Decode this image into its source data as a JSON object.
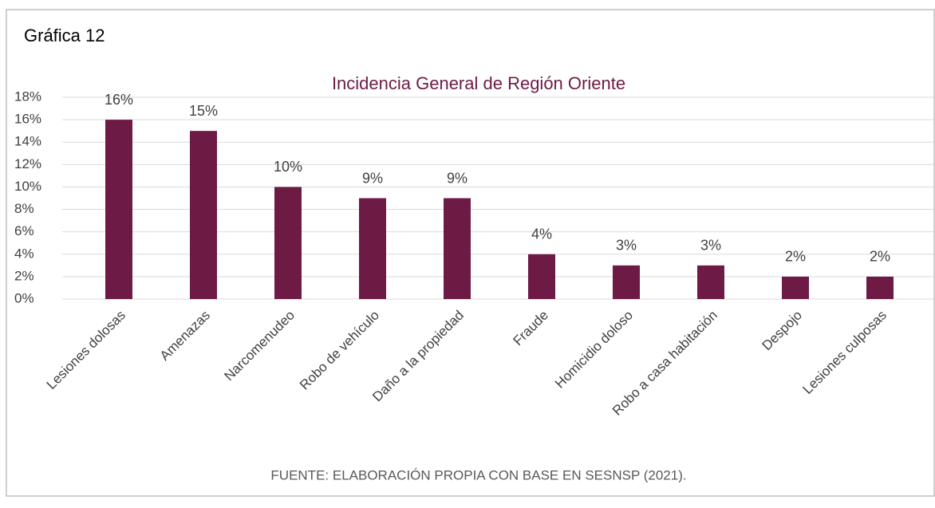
{
  "heading": "Gráfica 12",
  "chart_data": {
    "type": "bar",
    "title": "Incidencia General de Región Oriente",
    "categories": [
      "Lesiones dolosas",
      "Amenazas",
      "Narcomenudeo",
      "Robo de vehículo",
      "Daño a la propiedad",
      "Fraude",
      "Homicidio doloso",
      "Robo a casa habitación",
      "Despojo",
      "Lesiones culposas"
    ],
    "values": [
      16,
      15,
      10,
      9,
      9,
      4,
      3,
      3,
      2,
      2
    ],
    "value_labels": [
      "16%",
      "15%",
      "10%",
      "9%",
      "9%",
      "4%",
      "3%",
      "3%",
      "2%",
      "2%"
    ],
    "color": "#6d1b45",
    "ylim": [
      0,
      18
    ],
    "yticks": [
      {
        "value": 0,
        "label": "0%"
      },
      {
        "value": 2,
        "label": "2%"
      },
      {
        "value": 4,
        "label": "4%"
      },
      {
        "value": 6,
        "label": "6%"
      },
      {
        "value": 8,
        "label": "8%"
      },
      {
        "value": 10,
        "label": "10%"
      },
      {
        "value": 12,
        "label": "12%"
      },
      {
        "value": 14,
        "label": "14%"
      },
      {
        "value": 16,
        "label": "16%"
      },
      {
        "value": 18,
        "label": "18%"
      }
    ],
    "grid": true
  },
  "source": "FUENTE: ELABORACIÓN PROPIA CON BASE EN SESNSP (2021)."
}
